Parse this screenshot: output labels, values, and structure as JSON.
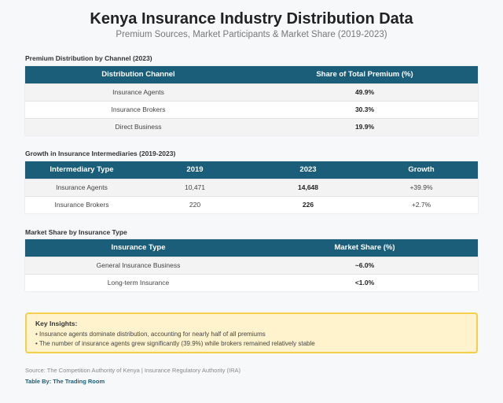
{
  "title": "Kenya Insurance Industry Distribution Data",
  "subtitle": "Premium Sources, Market Participants & Market Share (2019-2023)",
  "table1": {
    "label": "Premium Distribution by Channel (2023)",
    "headers": [
      "Distribution Channel",
      "Share of Total Premium (%)"
    ],
    "rows": [
      [
        "Insurance Agents",
        "49.9%"
      ],
      [
        "Insurance Brokers",
        "30.3%"
      ],
      [
        "Direct Business",
        "19.9%"
      ]
    ]
  },
  "table2": {
    "label": "Growth in Insurance Intermediaries (2019-2023)",
    "headers": [
      "Intermediary Type",
      "2019",
      "2023",
      "Growth"
    ],
    "rows": [
      [
        "Insurance Agents",
        "10,471",
        "14,648",
        "+39.9%"
      ],
      [
        "Insurance Brokers",
        "220",
        "226",
        "+2.7%"
      ]
    ]
  },
  "table3": {
    "label": "Market Share by Insurance Type",
    "headers": [
      "Insurance Type",
      "Market Share (%)"
    ],
    "rows": [
      [
        "General Insurance Business",
        "~6.0%"
      ],
      [
        "Long-term Insurance",
        "<1.0%"
      ]
    ]
  },
  "insights": {
    "heading": "Key Insights:",
    "items": [
      "• Insurance agents dominate distribution, accounting for nearly half of all premiums",
      "• The number of insurance agents grew significantly (39.9%) while brokers remained relatively stable"
    ]
  },
  "source": "Source: The Competition Authority of Kenya | Insurance Regulatory Authority (IRA)",
  "credit": "Table By: The Trading Room"
}
